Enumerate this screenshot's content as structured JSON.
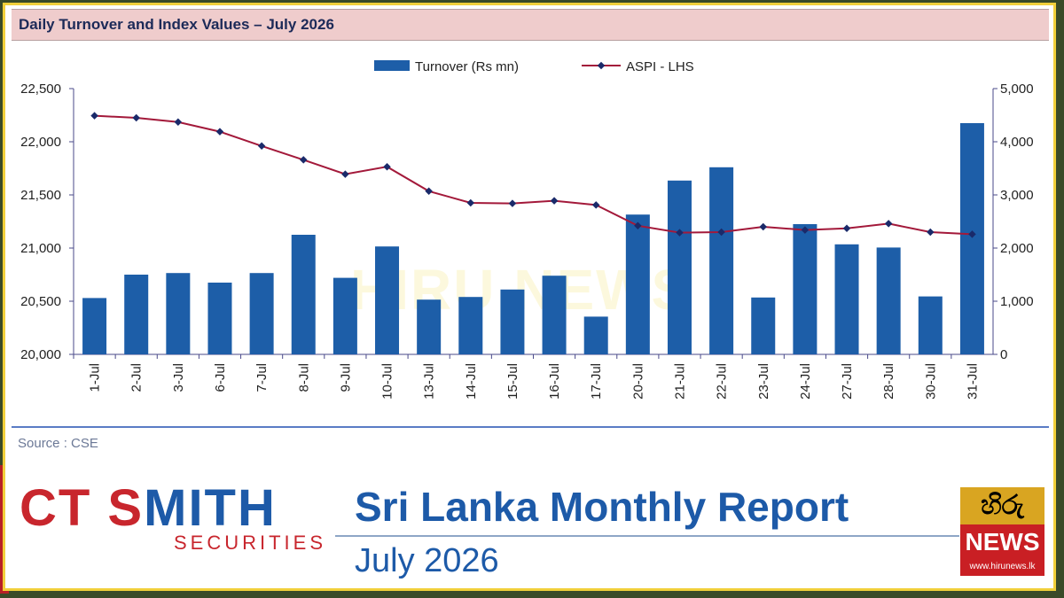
{
  "chart_data": {
    "type": "bar",
    "title": "Daily Turnover and Index Values – July 2026",
    "categories": [
      "1-Jul",
      "2-Jul",
      "3-Jul",
      "6-Jul",
      "7-Jul",
      "8-Jul",
      "9-Jul",
      "10-Jul",
      "13-Jul",
      "14-Jul",
      "15-Jul",
      "16-Jul",
      "17-Jul",
      "20-Jul",
      "21-Jul",
      "22-Jul",
      "23-Jul",
      "24-Jul",
      "27-Jul",
      "28-Jul",
      "30-Jul",
      "31-Jul"
    ],
    "series": [
      {
        "name": "Turnover (Rs mn)",
        "type": "bar",
        "axis": "right",
        "color": "#1d5ea8",
        "values": [
          1060,
          1500,
          1530,
          1350,
          1530,
          2250,
          1440,
          2030,
          1030,
          1080,
          1220,
          1480,
          710,
          2630,
          3270,
          3520,
          1070,
          2450,
          2070,
          2010,
          1090,
          4350
        ]
      },
      {
        "name": "ASPI - LHS",
        "type": "line",
        "axis": "left",
        "color": "#a3193a",
        "values": [
          22245,
          22225,
          22185,
          22095,
          21960,
          21830,
          21695,
          21765,
          21535,
          21425,
          21420,
          21445,
          21405,
          21210,
          21145,
          21150,
          21200,
          21170,
          21185,
          21230,
          21150,
          21130
        ]
      }
    ],
    "ylim_left": [
      20000,
      22500
    ],
    "ylim_right": [
      0,
      5000
    ],
    "yticks_left": [
      "20,000",
      "20,500",
      "21,000",
      "21,500",
      "22,000",
      "22,500"
    ],
    "yticks_right": [
      "0",
      "1,000",
      "2,000",
      "3,000",
      "4,000",
      "5,000"
    ],
    "legend_position": "top-center",
    "grid": false
  },
  "source": "Source : CSE",
  "brand": {
    "part1": "CT S",
    "part2": "MITH",
    "sub": "SECURITIES"
  },
  "report": {
    "title": "Sri Lanka Monthly Report",
    "month": "July 2026"
  },
  "logo": {
    "top": "හිරු",
    "name": "NEWS",
    "url": "www.hirunews.lk"
  },
  "watermark": "HIRU NEWS",
  "colors": {
    "frame": "#f1cf3a",
    "title_bg": "#efcccc",
    "bar": "#1d5ea8",
    "line": "#a3193a",
    "brand_red": "#c8262d",
    "brand_blue": "#1d5aa8"
  }
}
